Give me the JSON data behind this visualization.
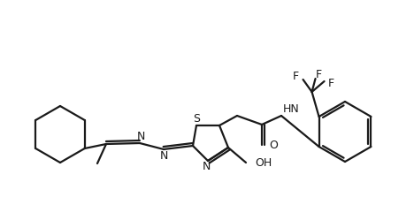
{
  "bg_color": "#ffffff",
  "line_color": "#1a1a1a",
  "line_width": 1.6,
  "figsize": [
    4.68,
    2.49
  ],
  "dpi": 100,
  "text_fontsize": 9.0,
  "xlim": [
    0,
    468
  ],
  "ylim": [
    0,
    249
  ]
}
